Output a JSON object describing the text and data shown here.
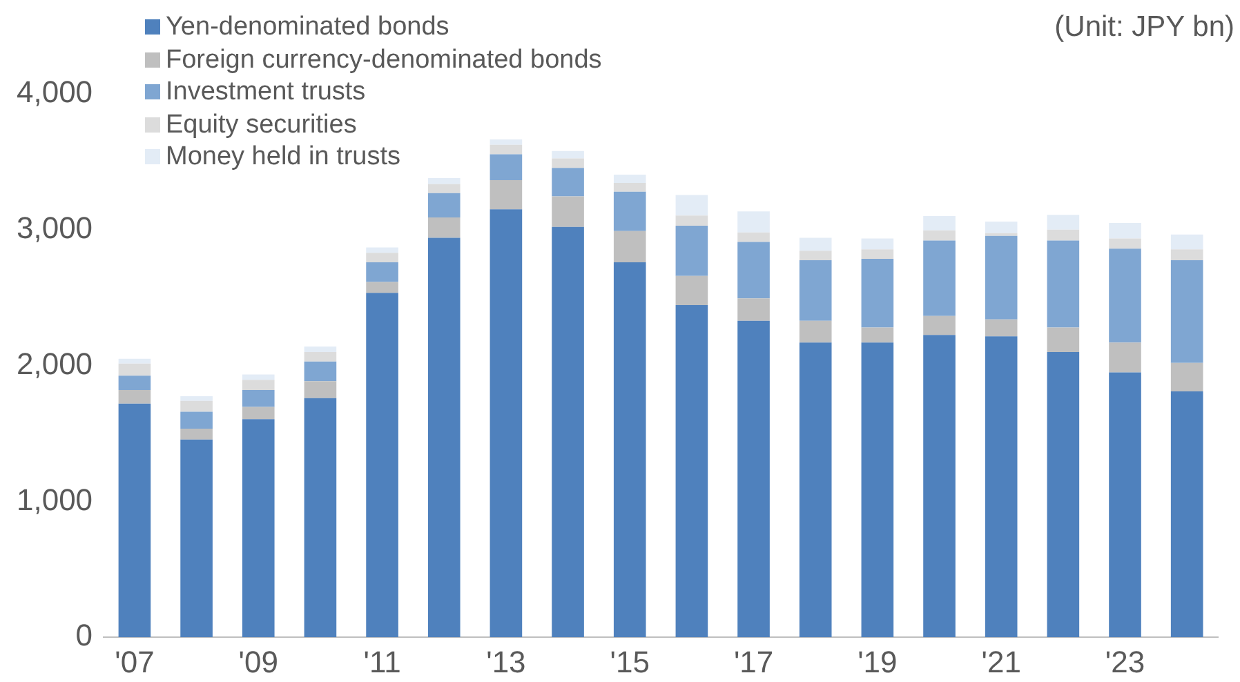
{
  "chart_data": {
    "type": "bar",
    "stacked": true,
    "categories": [
      "'07",
      null,
      "'09",
      null,
      "'11",
      null,
      "'13",
      null,
      "'15",
      null,
      "'17",
      null,
      "'19",
      null,
      "'21",
      null,
      "'23",
      null
    ],
    "series": [
      {
        "name": "Yen-denominated bonds",
        "color": "#4f81bd",
        "values": [
          1720,
          1455,
          1605,
          1760,
          2535,
          2940,
          3150,
          3020,
          2760,
          2445,
          2330,
          2170,
          2170,
          2225,
          2215,
          2100,
          1950,
          1810
        ]
      },
      {
        "name": "Foreign currency-denominated bonds",
        "color": "#bfbfbf",
        "values": [
          100,
          80,
          90,
          125,
          80,
          150,
          215,
          225,
          230,
          215,
          165,
          160,
          110,
          140,
          125,
          180,
          220,
          210
        ]
      },
      {
        "name": "Investment trusts",
        "color": "#7fa6d2",
        "values": [
          105,
          125,
          125,
          145,
          145,
          180,
          190,
          210,
          290,
          370,
          415,
          445,
          505,
          555,
          615,
          640,
          690,
          755
        ]
      },
      {
        "name": "Equity securities",
        "color": "#dcdcdc",
        "values": [
          90,
          80,
          75,
          70,
          70,
          65,
          70,
          70,
          65,
          75,
          70,
          70,
          70,
          75,
          20,
          80,
          75,
          80
        ]
      },
      {
        "name": "Money held in trusts",
        "color": "#e3ecf6",
        "values": [
          35,
          35,
          40,
          40,
          40,
          45,
          40,
          55,
          60,
          150,
          155,
          95,
          80,
          105,
          85,
          110,
          115,
          110
        ]
      }
    ],
    "ylim": [
      0,
      4000
    ],
    "yticks": [
      0,
      {
        "value": 1000,
        "label": "1,000"
      },
      {
        "value": 2000,
        "label": "2,000"
      },
      {
        "value": 3000,
        "label": "3,000"
      },
      {
        "value": 4000,
        "label": "4,000"
      }
    ],
    "grid": false,
    "legend": "top left",
    "annotations": [
      "(Unit: JPY bn)"
    ]
  }
}
